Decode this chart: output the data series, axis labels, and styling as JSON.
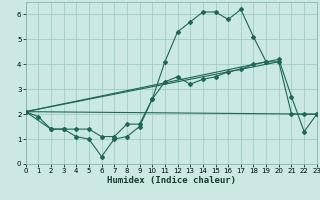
{
  "xlabel": "Humidex (Indice chaleur)",
  "bg_color": "#cce8e4",
  "grid_color": "#9ecdc7",
  "line_color": "#1a6858",
  "xlim": [
    0,
    23
  ],
  "ylim": [
    0,
    6.5
  ],
  "xticks": [
    0,
    1,
    2,
    3,
    4,
    5,
    6,
    7,
    8,
    9,
    10,
    11,
    12,
    13,
    14,
    15,
    16,
    17,
    18,
    19,
    20,
    21,
    22,
    23
  ],
  "yticks": [
    0,
    1,
    2,
    3,
    4,
    5,
    6
  ],
  "line1_x": [
    0,
    1,
    2,
    3,
    4,
    5,
    6,
    7,
    8,
    9,
    10,
    11,
    12,
    13,
    14,
    15,
    16,
    17,
    18,
    19,
    20,
    21,
    22,
    23
  ],
  "line1_y": [
    2.1,
    1.9,
    1.4,
    1.4,
    1.1,
    1.0,
    0.3,
    1.0,
    1.1,
    1.5,
    2.6,
    4.1,
    5.3,
    5.7,
    6.1,
    6.1,
    5.8,
    6.2,
    5.1,
    4.1,
    4.2,
    2.7,
    1.3,
    2.0
  ],
  "line2_x": [
    0,
    2,
    3,
    4,
    5,
    6,
    7,
    8,
    9,
    10,
    11,
    12,
    13,
    14,
    15,
    16,
    17,
    18,
    19,
    20,
    21,
    22,
    23
  ],
  "line2_y": [
    2.1,
    1.4,
    1.4,
    1.4,
    1.4,
    1.1,
    1.1,
    1.6,
    1.6,
    2.6,
    3.3,
    3.5,
    3.2,
    3.4,
    3.5,
    3.7,
    3.8,
    4.0,
    4.1,
    4.1,
    2.0,
    2.0,
    2.0
  ],
  "line3_x": [
    0,
    23
  ],
  "line3_y": [
    2.1,
    2.0
  ],
  "line4_x": [
    0,
    20
  ],
  "line4_y": [
    2.1,
    4.1
  ],
  "line5_x": [
    0,
    19
  ],
  "line5_y": [
    2.1,
    4.1
  ]
}
